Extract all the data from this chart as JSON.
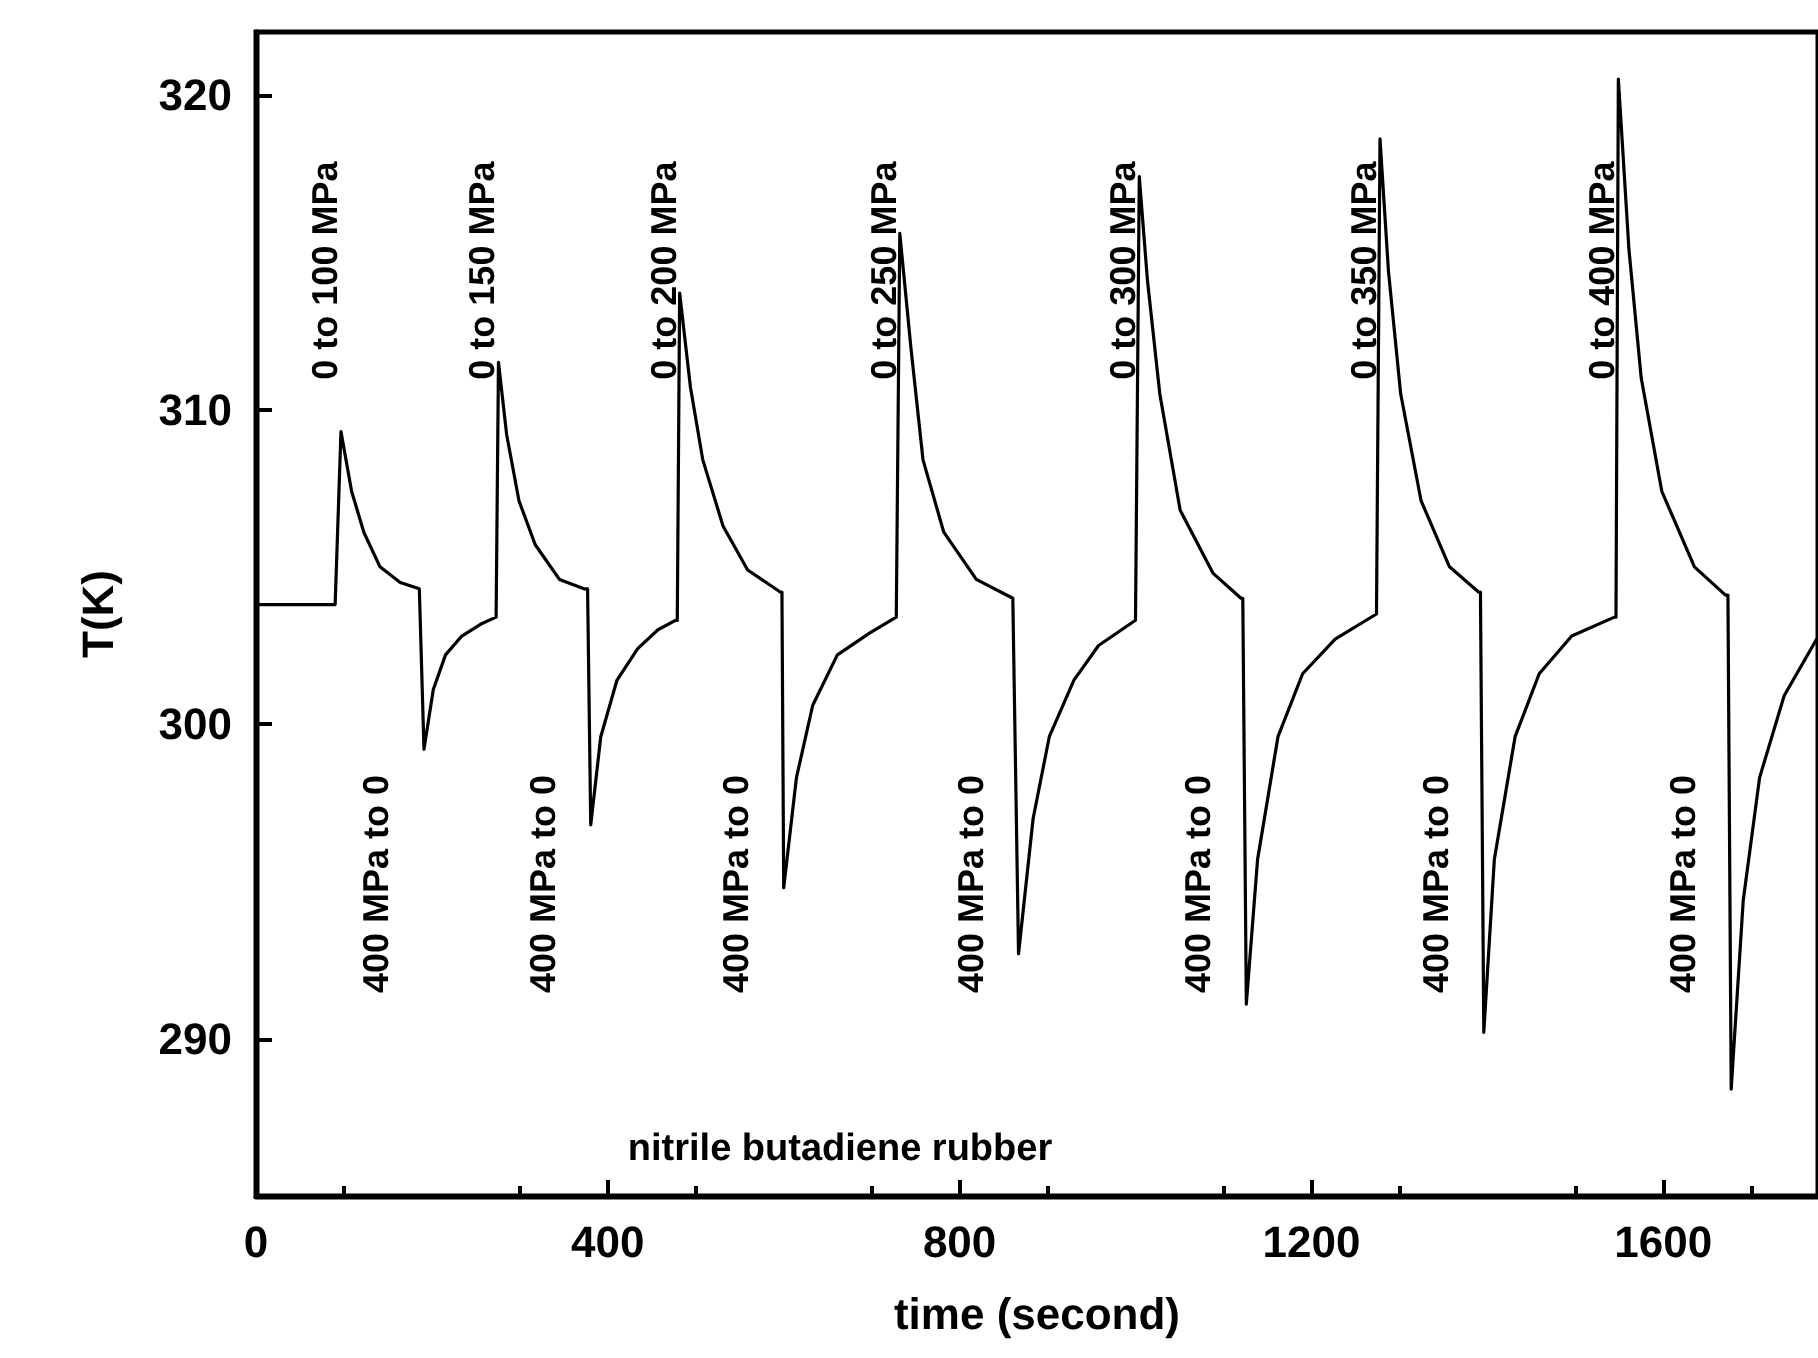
{
  "chart_data": {
    "type": "line",
    "xlabel": "time (second)",
    "ylabel": "T(K)",
    "xlim": [
      0,
      1776
    ],
    "ylim": [
      285,
      322
    ],
    "xticks": [
      0,
      400,
      800,
      1200,
      1600
    ],
    "yticks": [
      290,
      300,
      310,
      320
    ],
    "grid": false,
    "marker": "none",
    "line_style": "solid",
    "series": [
      {
        "color": "#000000",
        "x": [
          0,
          90,
          96.6,
          108.7,
          122.6,
          141,
          164,
          185.7,
          187,
          191,
          201.6,
          215.5,
          234,
          257,
          273,
          274,
          275.7,
          285,
          299,
          317.5,
          345,
          373,
          377,
          380.6,
          392,
          410.5,
          434,
          457,
          477,
          479,
          481.7,
          494,
          508,
          531,
          559,
          596,
          598,
          600,
          614.5,
          633,
          661,
          698,
          728,
          729.6,
          732,
          744.5,
          758.4,
          782,
          819,
          860.5,
          862,
          867,
          883.6,
          902,
          930,
          958,
          1000,
          1001.6,
          1004.3,
          1013.6,
          1027.6,
          1050.8,
          1088,
          1120,
          1122,
          1126,
          1138.8,
          1162,
          1190,
          1227,
          1274,
          1275.3,
          1278,
          1287.6,
          1301.5,
          1324.7,
          1357,
          1390,
          1392.2,
          1396,
          1408,
          1431.6,
          1459,
          1496,
          1544.5,
          1546.3,
          1549,
          1561,
          1575,
          1598.4,
          1635.5,
          1670.8,
          1673.6,
          1677.3,
          1691,
          1709.6,
          1737.5,
          1774.5
        ],
        "values": [
          303.8,
          303.8,
          309.3,
          307.4,
          306.1,
          305.0,
          304.5,
          304.3,
          304.3,
          299.2,
          301.1,
          302.2,
          302.8,
          303.2,
          303.4,
          303.4,
          311.5,
          309.2,
          307.1,
          305.7,
          304.6,
          304.3,
          304.3,
          296.8,
          299.6,
          301.4,
          302.4,
          303.0,
          303.3,
          303.3,
          313.7,
          310.7,
          308.4,
          306.3,
          304.9,
          304.2,
          304.2,
          294.8,
          298.3,
          300.6,
          302.2,
          302.9,
          303.4,
          303.4,
          315.6,
          312.0,
          308.4,
          306.1,
          304.6,
          304.0,
          304.0,
          292.7,
          297.0,
          299.6,
          301.4,
          302.5,
          303.3,
          303.3,
          317.4,
          314.1,
          310.5,
          306.8,
          304.8,
          304.0,
          304.0,
          291.1,
          295.7,
          299.6,
          301.6,
          302.7,
          303.5,
          303.5,
          318.6,
          314.4,
          310.5,
          307.1,
          305.0,
          304.2,
          304.2,
          290.2,
          295.7,
          299.6,
          301.6,
          302.8,
          303.4,
          303.4,
          320.5,
          315.1,
          311.0,
          307.4,
          305.0,
          304.1,
          304.1,
          288.4,
          294.4,
          298.3,
          300.9,
          302.7
        ]
      }
    ],
    "annotations": [
      "0 to 100 MPa",
      "0 to 150 MPa",
      "0 to 200 MPa",
      "0 to 250 MPa",
      "0 to 300 MPa",
      "0 to 350 MPa",
      "0 to 400 MPa",
      "400 MPa to 0",
      "400 MPa to 0",
      "400 MPa to 0",
      "400 MPa to 0",
      "400 MPa to 0",
      "400 MPa to 0",
      "400 MPa to 0",
      "nitrile butadiene rubber"
    ]
  }
}
